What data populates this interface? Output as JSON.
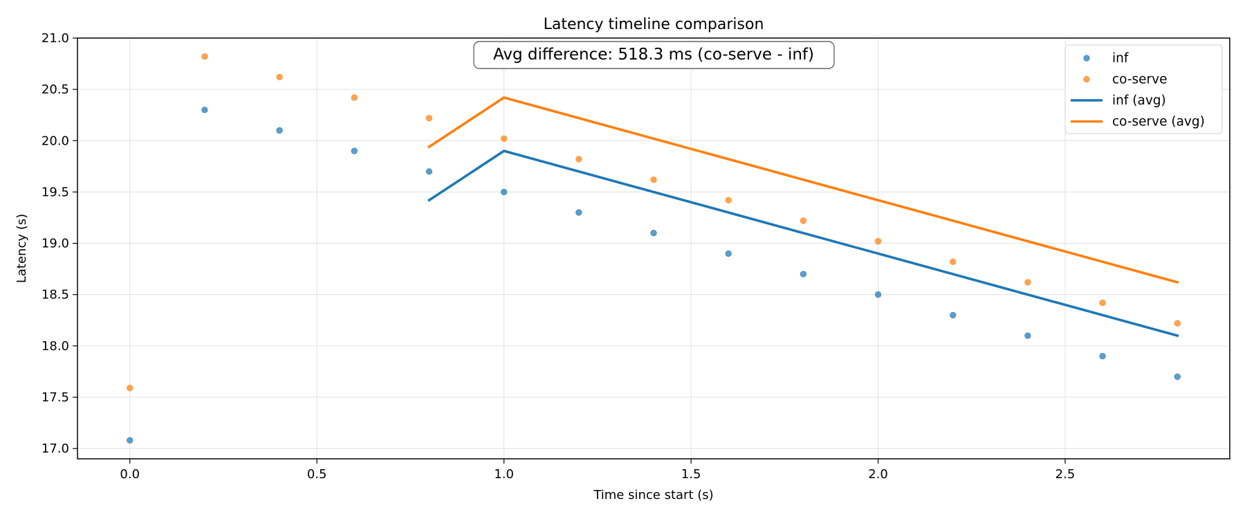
{
  "chart_data": {
    "type": "scatter",
    "title": "Latency timeline comparison",
    "xlabel": "Time since start (s)",
    "ylabel": "Latency (s)",
    "xlim": [
      -0.14,
      2.94
    ],
    "ylim": [
      16.9,
      21.0
    ],
    "x_ticks": [
      0.0,
      0.5,
      1.0,
      1.5,
      2.0,
      2.5
    ],
    "x_tick_labels": [
      "0.0",
      "0.5",
      "1.0",
      "1.5",
      "2.0",
      "2.5"
    ],
    "y_ticks": [
      17.0,
      17.5,
      18.0,
      18.5,
      19.0,
      19.5,
      20.0,
      20.5,
      21.0
    ],
    "y_tick_labels": [
      "17.0",
      "17.5",
      "18.0",
      "18.5",
      "19.0",
      "19.5",
      "20.0",
      "20.5",
      "21.0"
    ],
    "grid": true,
    "legend_position": "top-right",
    "annotation": "Avg difference: 518.3 ms (co-serve - inf)",
    "series": [
      {
        "name": "inf",
        "kind": "scatter",
        "color": "#1f77b4",
        "x": [
          0.0,
          0.2,
          0.4,
          0.6,
          0.8,
          1.0,
          1.2,
          1.4,
          1.6,
          1.8,
          2.0,
          2.2,
          2.4,
          2.6,
          2.8
        ],
        "y": [
          17.08,
          20.3,
          20.1,
          19.9,
          19.7,
          19.5,
          19.3,
          19.1,
          18.9,
          18.7,
          18.5,
          18.3,
          18.1,
          17.9,
          17.7
        ]
      },
      {
        "name": "co-serve",
        "kind": "scatter",
        "color": "#ff7f0e",
        "x": [
          0.0,
          0.2,
          0.4,
          0.6,
          0.8,
          1.0,
          1.2,
          1.4,
          1.6,
          1.8,
          2.0,
          2.2,
          2.4,
          2.6,
          2.8
        ],
        "y": [
          17.59,
          20.82,
          20.62,
          20.42,
          20.22,
          20.02,
          19.82,
          19.62,
          19.42,
          19.22,
          19.02,
          18.82,
          18.62,
          18.42,
          18.22
        ]
      },
      {
        "name": "inf (avg)",
        "kind": "line",
        "color": "#1f77b4",
        "x": [
          0.8,
          1.0,
          2.8
        ],
        "y": [
          19.42,
          19.9,
          18.1
        ]
      },
      {
        "name": "co-serve (avg)",
        "kind": "line",
        "color": "#ff7f0e",
        "x": [
          0.8,
          1.0,
          2.8
        ],
        "y": [
          19.94,
          20.42,
          18.62
        ]
      }
    ]
  }
}
